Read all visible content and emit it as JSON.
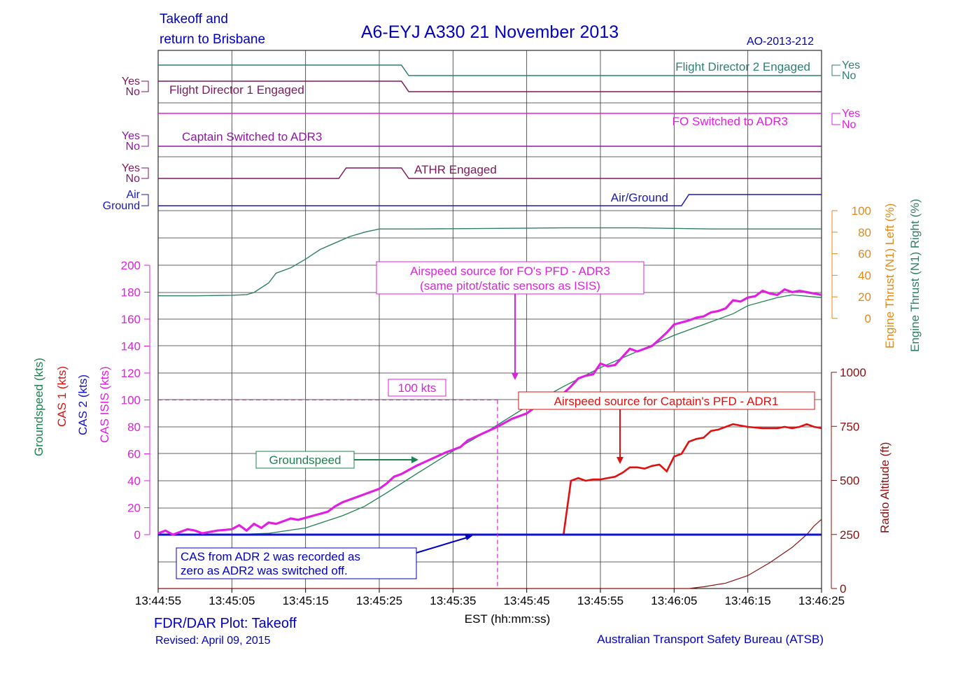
{
  "header": {
    "title": "A6-EYJ  A330  21 November 2013",
    "subtitle_line1": "Takeoff and",
    "subtitle_line2": "return to Brisbane",
    "ref": "AO-2013-212"
  },
  "footer": {
    "plot_title": "FDR/DAR Plot: Takeoff",
    "revised": "Revised: April 09, 2015",
    "agency": "Australian Transport Safety Bureau (ATSB)"
  },
  "colors": {
    "fd2": "#2f7f72",
    "fd1": "#7a1a5e",
    "fo_adr3": "#e020e0",
    "capt_adr3": "#8a1aa0",
    "athr": "#7a1a5e",
    "airground": "#1a1ab0",
    "eng_left": "#e08a1a",
    "eng_right": "#2f7f60",
    "groundspeed": "#1f8050",
    "cas1": "#e01010",
    "cas2": "#1010d0",
    "cas_isis": "#e020e0",
    "radio_alt": "#8a1010",
    "navy": "#0000c0"
  },
  "chart_data": {
    "type": "line",
    "xlabel": "EST (hh:mm:ss)",
    "x_ticks": [
      "13:44:55",
      "13:45:05",
      "13:45:15",
      "13:45:25",
      "13:45:35",
      "13:45:45",
      "13:45:55",
      "13:46:05",
      "13:46:15",
      "13:46:25"
    ],
    "x_range_s": [
      0,
      90
    ],
    "discrete": [
      {
        "name": "Flight Director 2 Engaged",
        "labels": [
          "Yes",
          "No"
        ],
        "side": "right",
        "points": [
          [
            0,
            1
          ],
          [
            33,
            1
          ],
          [
            34,
            0
          ],
          [
            90,
            0
          ]
        ]
      },
      {
        "name": "Flight Director 1 Engaged",
        "labels": [
          "Yes",
          "No"
        ],
        "side": "left",
        "points": [
          [
            0,
            1
          ],
          [
            33,
            1
          ],
          [
            34,
            0
          ],
          [
            90,
            0
          ]
        ]
      },
      {
        "name": "FO Switched to ADR3",
        "labels": [
          "Yes",
          "No"
        ],
        "side": "right",
        "points": [
          [
            0,
            1
          ],
          [
            90,
            1
          ]
        ]
      },
      {
        "name": "Captain Switched to ADR3",
        "labels": [
          "Yes",
          "No"
        ],
        "side": "left",
        "points": [
          [
            0,
            0
          ],
          [
            90,
            0
          ]
        ]
      },
      {
        "name": "ATHR Engaged",
        "labels": [
          "Yes",
          "No"
        ],
        "side": "left",
        "points": [
          [
            0,
            0
          ],
          [
            24.5,
            0
          ],
          [
            25.5,
            1
          ],
          [
            33,
            1
          ],
          [
            34,
            0
          ],
          [
            90,
            0
          ]
        ]
      },
      {
        "name": "Air/Ground",
        "labels": [
          "Air",
          "Ground"
        ],
        "side": "left",
        "points": [
          [
            0,
            0
          ],
          [
            71,
            0
          ],
          [
            72,
            1
          ],
          [
            90,
            1
          ]
        ]
      }
    ],
    "engine_thrust": {
      "axis_label_left": "Engine Thrust (N1) Left (%)",
      "axis_label_right": "Engine Thrust (N1) Right (%)",
      "y_ticks": [
        0,
        20,
        40,
        60,
        80,
        100
      ],
      "ylim": [
        0,
        100
      ],
      "points": [
        [
          0,
          21
        ],
        [
          5,
          21
        ],
        [
          10,
          21.5
        ],
        [
          12,
          22
        ],
        [
          13,
          24
        ],
        [
          15,
          33
        ],
        [
          16,
          42
        ],
        [
          18,
          47
        ],
        [
          20,
          55
        ],
        [
          22,
          64
        ],
        [
          24,
          70
        ],
        [
          26,
          76
        ],
        [
          28,
          80
        ],
        [
          30,
          83
        ],
        [
          35,
          83
        ],
        [
          45,
          83.5
        ],
        [
          55,
          84
        ],
        [
          65,
          84
        ],
        [
          75,
          83
        ],
        [
          90,
          83
        ]
      ]
    },
    "speed": {
      "axis_labels": [
        "Groundspeed (kts)",
        "CAS 1 (kts)",
        "CAS 2 (kts)",
        "CAS ISIS (kts)"
      ],
      "y_ticks": [
        0,
        20,
        40,
        60,
        80,
        100,
        120,
        140,
        160,
        180,
        200
      ],
      "ylim": [
        0,
        200
      ],
      "series": [
        {
          "name": "CAS ISIS",
          "points": [
            [
              0,
              1
            ],
            [
              1,
              3
            ],
            [
              2,
              0
            ],
            [
              4,
              4
            ],
            [
              5,
              3
            ],
            [
              6,
              1
            ],
            [
              8,
              3
            ],
            [
              10,
              4
            ],
            [
              11,
              7
            ],
            [
              12,
              3
            ],
            [
              13,
              8
            ],
            [
              14,
              5
            ],
            [
              15,
              9
            ],
            [
              16,
              8
            ],
            [
              18,
              12
            ],
            [
              19,
              11
            ],
            [
              21,
              14
            ],
            [
              23,
              17
            ],
            [
              24,
              21
            ],
            [
              25,
              24
            ],
            [
              27,
              28
            ],
            [
              29,
              32
            ],
            [
              30,
              34
            ],
            [
              31,
              38
            ],
            [
              32,
              43
            ],
            [
              33,
              45
            ],
            [
              35,
              51
            ],
            [
              37,
              56
            ],
            [
              39,
              61
            ],
            [
              41,
              65
            ],
            [
              42,
              70
            ],
            [
              44,
              75
            ],
            [
              46,
              80
            ],
            [
              48,
              86
            ],
            [
              49,
              88
            ],
            [
              50,
              90
            ],
            [
              51,
              94
            ],
            [
              52,
              97
            ],
            [
              53,
              100
            ],
            [
              55,
              105
            ],
            [
              56,
              110
            ],
            [
              57,
              116
            ],
            [
              58,
              118
            ],
            [
              59,
              119
            ],
            [
              60,
              127
            ],
            [
              61,
              125
            ],
            [
              62,
              126
            ],
            [
              63,
              132
            ],
            [
              64,
              138
            ],
            [
              65,
              136
            ],
            [
              66,
              138
            ],
            [
              67,
              140
            ],
            [
              68,
              145
            ],
            [
              69,
              150
            ],
            [
              70,
              156
            ],
            [
              72,
              159
            ],
            [
              73,
              161
            ],
            [
              74,
              162
            ],
            [
              75,
              165
            ],
            [
              76,
              166
            ],
            [
              77,
              168
            ],
            [
              78,
              174
            ],
            [
              79,
              173
            ],
            [
              80,
              176
            ],
            [
              81,
              177
            ],
            [
              82,
              181
            ],
            [
              83,
              179
            ],
            [
              84,
              178
            ],
            [
              85,
              182
            ],
            [
              86,
              180
            ],
            [
              87,
              181
            ],
            [
              88,
              180
            ],
            [
              89,
              179
            ],
            [
              90,
              178
            ]
          ]
        },
        {
          "name": "Groundspeed",
          "points": [
            [
              0,
              0
            ],
            [
              10,
              0
            ],
            [
              15,
              1
            ],
            [
              20,
              5
            ],
            [
              25,
              14
            ],
            [
              28,
              21
            ],
            [
              31,
              31
            ],
            [
              35,
              45
            ],
            [
              40,
              62
            ],
            [
              45,
              78
            ],
            [
              50,
              95
            ],
            [
              55,
              110
            ],
            [
              60,
              124
            ],
            [
              65,
              136
            ],
            [
              70,
              148
            ],
            [
              75,
              158
            ],
            [
              78,
              164
            ],
            [
              80,
              170
            ],
            [
              84,
              176
            ],
            [
              86,
              178
            ],
            [
              88,
              177
            ],
            [
              90,
              176
            ]
          ]
        },
        {
          "name": "CAS 1",
          "points": [
            [
              0,
              0
            ],
            [
              55,
              0
            ],
            [
              56,
              40
            ],
            [
              57,
              42
            ],
            [
              58,
              40
            ],
            [
              59,
              41
            ],
            [
              60,
              41
            ],
            [
              61,
              42
            ],
            [
              62,
              43
            ],
            [
              63,
              46
            ],
            [
              64,
              50
            ],
            [
              65,
              50
            ],
            [
              66,
              49
            ],
            [
              67,
              51
            ],
            [
              68,
              52
            ],
            [
              69,
              47
            ],
            [
              70,
              58
            ],
            [
              71,
              60
            ],
            [
              72,
              69
            ],
            [
              73,
              71
            ],
            [
              74,
              72
            ],
            [
              75,
              77
            ],
            [
              76,
              78
            ],
            [
              78,
              82
            ],
            [
              79,
              81
            ],
            [
              80,
              80
            ],
            [
              82,
              79
            ],
            [
              84,
              79
            ],
            [
              85,
              80
            ],
            [
              86,
              79
            ],
            [
              87,
              80
            ],
            [
              88,
              82
            ],
            [
              89,
              80
            ],
            [
              90,
              79
            ]
          ]
        },
        {
          "name": "CAS 2",
          "points": [
            [
              0,
              0
            ],
            [
              90,
              0
            ]
          ]
        }
      ]
    },
    "radio_altitude": {
      "axis_label": "Radio Altitude (ft)",
      "y_ticks": [
        0,
        250,
        500,
        750,
        1000
      ],
      "ylim": [
        0,
        1000
      ],
      "points": [
        [
          0,
          0
        ],
        [
          72,
          0
        ],
        [
          74,
          8
        ],
        [
          77,
          25
        ],
        [
          80,
          60
        ],
        [
          83,
          120
        ],
        [
          86,
          190
        ],
        [
          88,
          250
        ],
        [
          89,
          290
        ],
        [
          90,
          320
        ]
      ]
    },
    "annotations": {
      "fo_source": [
        "Airspeed source for FO's PFD - ADR3",
        "(same pitot/static sensors as ISIS)"
      ],
      "capt_source": "Airspeed source for Captain's PFD - ADR1",
      "cas2_note": [
        "CAS from ADR 2 was recorded as",
        "zero as ADR2 was switched off."
      ],
      "groundspeed_label": "Groundspeed",
      "hundred_kts": "100 kts"
    }
  }
}
